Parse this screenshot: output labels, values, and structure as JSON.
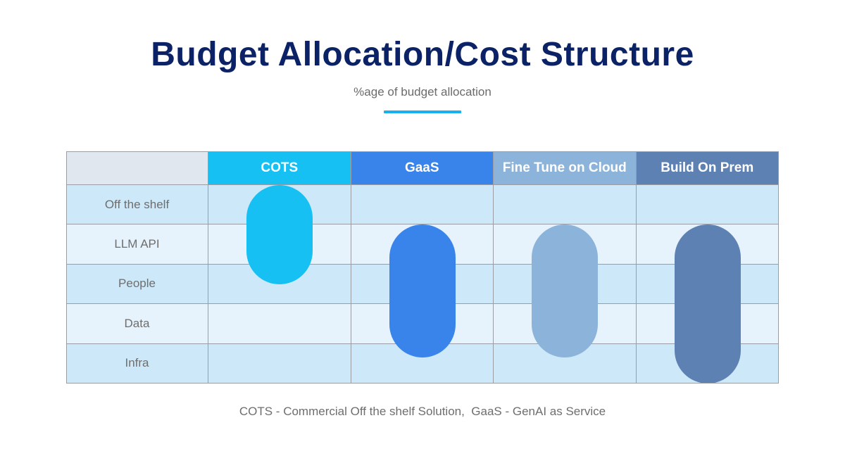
{
  "title": "Budget Allocation/Cost Structure",
  "subtitle": "%age of budget allocation",
  "table": {
    "columns": [
      {
        "label": "COTS",
        "color": "#16c0f2"
      },
      {
        "label": "GaaS",
        "color": "#3884ea"
      },
      {
        "label": "Fine Tune on Cloud",
        "color": "#8cb3da"
      },
      {
        "label": "Build On Prem",
        "color": "#5d81b3"
      }
    ],
    "rows": [
      "Off the shelf",
      "LLM API",
      "People",
      "Data",
      "Infra"
    ],
    "row_colors": [
      "#cde8f8",
      "#e6f3fc"
    ],
    "corner_color": "#e1e7ee"
  },
  "allocation": [
    {
      "solution": "COTS",
      "covers": [
        "Off the shelf",
        "LLM API",
        "People"
      ],
      "start_row": 0,
      "end_row": 2.5
    },
    {
      "solution": "GaaS",
      "covers": [
        "LLM API",
        "People",
        "Data"
      ],
      "start_row": 1,
      "end_row": 4.35
    },
    {
      "solution": "Fine Tune on Cloud",
      "covers": [
        "LLM API",
        "People",
        "Data"
      ],
      "start_row": 1,
      "end_row": 4.35
    },
    {
      "solution": "Build On Prem",
      "covers": [
        "LLM API",
        "People",
        "Data",
        "Infra"
      ],
      "start_row": 1,
      "end_row": 5
    }
  ],
  "footnote": "COTS - Commercial Off the shelf Solution,  GaaS - GenAI as Service"
}
